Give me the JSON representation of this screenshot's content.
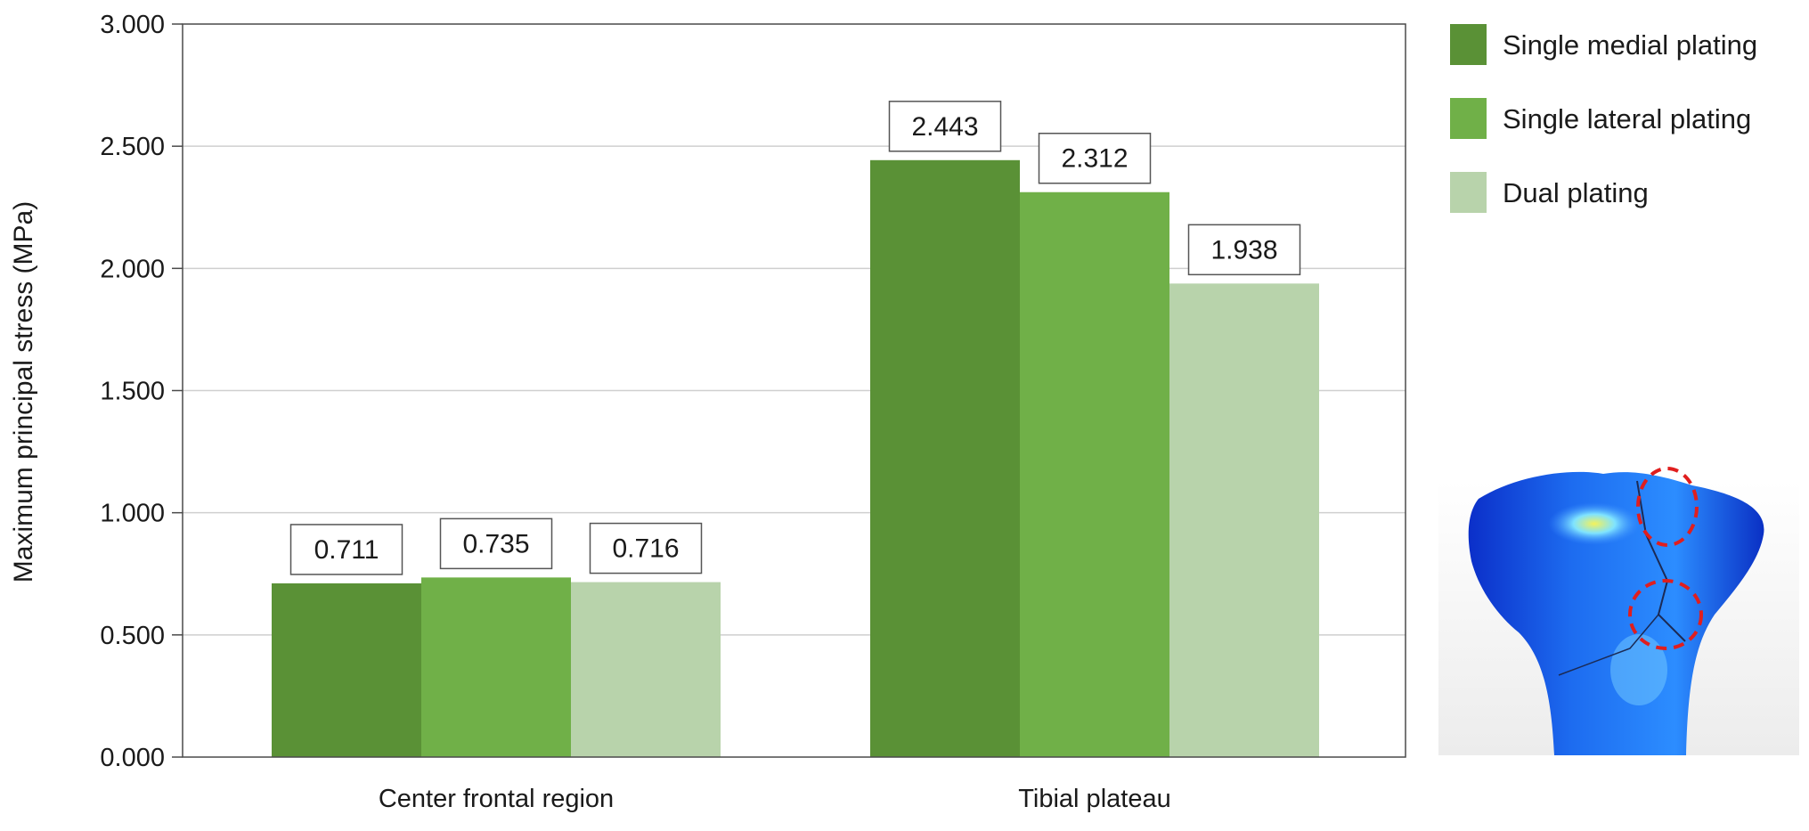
{
  "chart_data": {
    "type": "bar",
    "title": "",
    "xlabel": "",
    "ylabel": "Maximum principal stress (MPa)",
    "ylim": [
      0,
      3
    ],
    "yticks": [
      0,
      0.5,
      1,
      1.5,
      2,
      2.5,
      3
    ],
    "ytick_labels": [
      "0.000",
      "0.500",
      "1.000",
      "1.500",
      "2.000",
      "2.500",
      "3.000"
    ],
    "grid": true,
    "legend_position": "top-right",
    "categories": [
      "Center frontal region",
      "Tibial plateau"
    ],
    "series": [
      {
        "name": "Single medial plating",
        "color": "#5a9136",
        "values": [
          0.711,
          2.443
        ],
        "labels": [
          "0.711",
          "2.443"
        ]
      },
      {
        "name": "Single lateral plating",
        "color": "#70b048",
        "values": [
          0.735,
          2.312
        ],
        "labels": [
          "0.735",
          "2.312"
        ]
      },
      {
        "name": "Dual plating",
        "color": "#b8d3ab",
        "values": [
          0.716,
          1.938
        ],
        "labels": [
          "0.716",
          "1.938"
        ]
      }
    ],
    "inset": {
      "icon": "tibia-stress-map-icon"
    }
  }
}
